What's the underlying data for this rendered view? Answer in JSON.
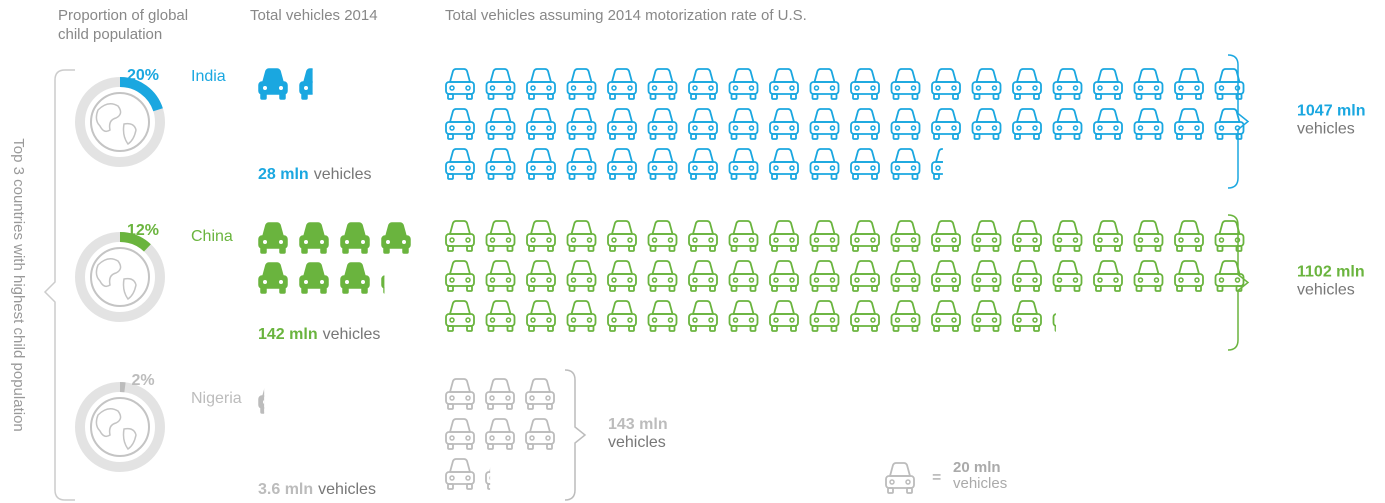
{
  "headers": [
    "Proportion of global child population",
    "Total vehicles 2014",
    "Total vehicles assuming 2014 motorization rate of U.S."
  ],
  "side_label": "Top 3 countries with highest child population",
  "unit": {
    "value": 20,
    "label": "20 mln",
    "text": "vehicles"
  },
  "countries": [
    {
      "name": "India",
      "color": "#1aa7e0",
      "share": 20,
      "share_label": "20%",
      "vehicles": 28,
      "vehicles_label": "28 mln",
      "vehicles_text": "vehicles",
      "us_rate": 1047,
      "us_rate_label": "1047 mln",
      "us_rate_text": "vehicles"
    },
    {
      "name": "China",
      "color": "#6ab43e",
      "share": 12,
      "share_label": "12%",
      "vehicles": 142,
      "vehicles_label": "142 mln",
      "vehicles_text": "vehicles",
      "us_rate": 1102,
      "us_rate_label": "1102 mln",
      "us_rate_text": "vehicles"
    },
    {
      "name": "Nigeria",
      "color": "#bcbcbc",
      "share": 2,
      "share_label": "2%",
      "vehicles": 3.6,
      "vehicles_label": "3.6 mln",
      "vehicles_text": "vehicles",
      "us_rate": 143,
      "us_rate_label": "143 mln",
      "us_rate_text": "vehicles"
    }
  ]
}
